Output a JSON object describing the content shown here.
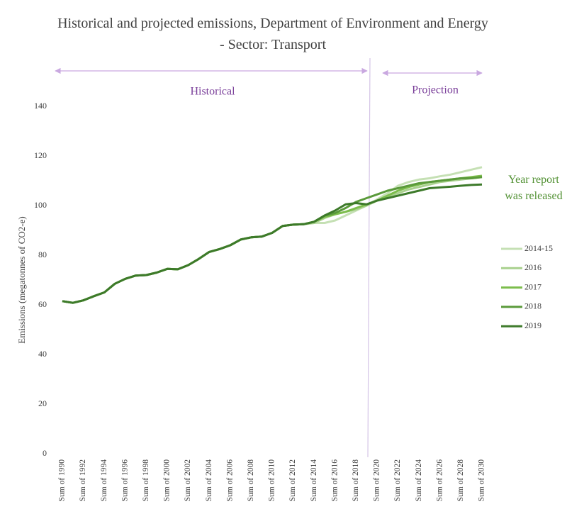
{
  "chart_data": {
    "type": "line",
    "title": "Historical and projected emissions, Department of Environment and Energy - Sector: Transport",
    "y_label": "Emissions (megatonnes of CO2-e)",
    "annotations": [
      "Historical",
      "Projection"
    ],
    "legend_title": "Year report was released",
    "categories": [
      "Sum of 1990",
      null,
      "Sum of 1992",
      null,
      "Sum of 1994",
      null,
      "Sum of 1996",
      null,
      "Sum of 1998",
      null,
      "Sum of 2000",
      null,
      "Sum of 2002",
      null,
      "Sum of 2004",
      null,
      "Sum of 2006",
      null,
      "Sum of 2008",
      null,
      "Sum of 2010",
      null,
      "Sum of 2012",
      null,
      "Sum of 2014",
      null,
      "Sum of 2016",
      null,
      "Sum of 2018",
      null,
      "Sum of 2020",
      null,
      "Sum of 2022",
      null,
      "Sum of 2024",
      null,
      "Sum of 2026",
      null,
      "Sum of 2028",
      null,
      "Sum of 2030"
    ],
    "ylim": [
      0,
      140
    ],
    "yticks": [
      0,
      20,
      40,
      60,
      80,
      100,
      120,
      140
    ],
    "grid": false,
    "legend": "right",
    "series": [
      {
        "name": "2014-15",
        "color": "#c5e0b4",
        "values": [
          61.5,
          60.8,
          61.8,
          63.5,
          65,
          68.5,
          70.5,
          71.8,
          72,
          73,
          74.5,
          74.3,
          76,
          78.5,
          81.3,
          82.5,
          84,
          86.3,
          87.2,
          87.5,
          89,
          91.8,
          92.3,
          92.5,
          93,
          93,
          94,
          96,
          98,
          100,
          102.5,
          105,
          108,
          109.5,
          110.5,
          111,
          111.8,
          112.5,
          113.5,
          114.5,
          115.5
        ]
      },
      {
        "name": "2016",
        "color": "#a9d18e",
        "values": [
          61.5,
          60.8,
          61.8,
          63.5,
          65,
          68.5,
          70.5,
          71.8,
          72,
          73,
          74.5,
          74.3,
          76,
          78.5,
          81.3,
          82.5,
          84,
          86.3,
          87.2,
          87.5,
          89,
          91.8,
          92.3,
          92.5,
          93,
          95,
          96.5,
          97.5,
          98.5,
          100,
          102,
          103.5,
          105,
          106.5,
          107.5,
          108.5,
          109.5,
          110,
          110.5,
          111,
          111.5
        ]
      },
      {
        "name": "2017",
        "color": "#7cbd4c",
        "values": [
          61.5,
          60.8,
          61.8,
          63.5,
          65,
          68.5,
          70.5,
          71.8,
          72,
          73,
          74.5,
          74.3,
          76,
          78.5,
          81.3,
          82.5,
          84,
          86.3,
          87.2,
          87.5,
          89,
          91.8,
          92.3,
          92.5,
          93.5,
          95.5,
          96.5,
          97.5,
          99,
          100.5,
          102,
          104,
          106,
          107.5,
          108.5,
          109.5,
          110,
          110.5,
          111,
          111.5,
          112
        ]
      },
      {
        "name": "2018",
        "color": "#5a9a3a",
        "values": [
          61.5,
          60.8,
          61.8,
          63.5,
          65,
          68.5,
          70.5,
          71.8,
          72,
          73,
          74.5,
          74.3,
          76,
          78.5,
          81.3,
          82.5,
          84,
          86.3,
          87.2,
          87.5,
          89,
          91.8,
          92.3,
          92.5,
          93.5,
          96,
          97,
          99,
          101.5,
          103,
          104.5,
          106,
          107,
          108,
          109,
          109.5,
          110,
          110.5,
          111,
          111,
          111.5
        ]
      },
      {
        "name": "2019",
        "color": "#3d7a2a",
        "values": [
          61.5,
          60.8,
          61.8,
          63.5,
          65,
          68.5,
          70.5,
          71.8,
          72,
          73,
          74.5,
          74.3,
          76,
          78.5,
          81.3,
          82.5,
          84,
          86.3,
          87.2,
          87.5,
          89,
          91.8,
          92.3,
          92.5,
          93.5,
          96,
          98,
          100.5,
          101,
          100.5,
          102,
          103,
          104,
          105,
          106,
          107,
          107.3,
          107.6,
          108,
          108.3,
          108.5
        ]
      }
    ]
  }
}
